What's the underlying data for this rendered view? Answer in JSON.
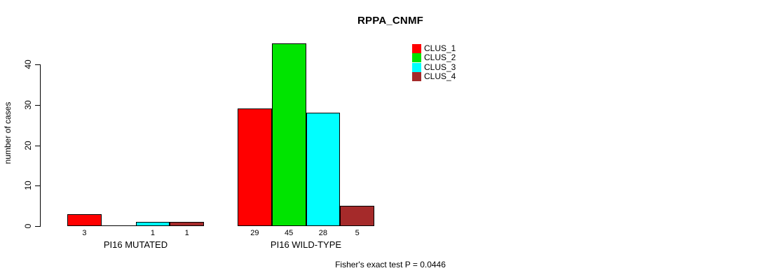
{
  "chart_data": {
    "type": "bar",
    "title": "RPPA_CNMF",
    "ylabel": "number of cases",
    "xlabel": "",
    "yticks": [
      0,
      10,
      20,
      30,
      40
    ],
    "ylim": [
      0,
      46
    ],
    "grid": false,
    "legend_position": "top-right-inside",
    "legend": [
      {
        "name": "CLUS_1",
        "color": "#FF0000"
      },
      {
        "name": "CLUS_2",
        "color": "#00E400"
      },
      {
        "name": "CLUS_3",
        "color": "#00FFFF"
      },
      {
        "name": "CLUS_4",
        "color": "#A52A2A"
      }
    ],
    "categories": [
      "PI16 MUTATED",
      "PI16 WILD-TYPE"
    ],
    "series": [
      {
        "name": "CLUS_1",
        "values": [
          3,
          29
        ]
      },
      {
        "name": "CLUS_2",
        "values": [
          0,
          45
        ]
      },
      {
        "name": "CLUS_3",
        "values": [
          1,
          28
        ]
      },
      {
        "name": "CLUS_4",
        "values": [
          1,
          5
        ]
      }
    ],
    "bar_value_labels": [
      [
        "3",
        "",
        "1",
        "1"
      ],
      [
        "29",
        "45",
        "28",
        "5"
      ]
    ],
    "annotation": "Fisher's exact test P = 0.0446"
  }
}
